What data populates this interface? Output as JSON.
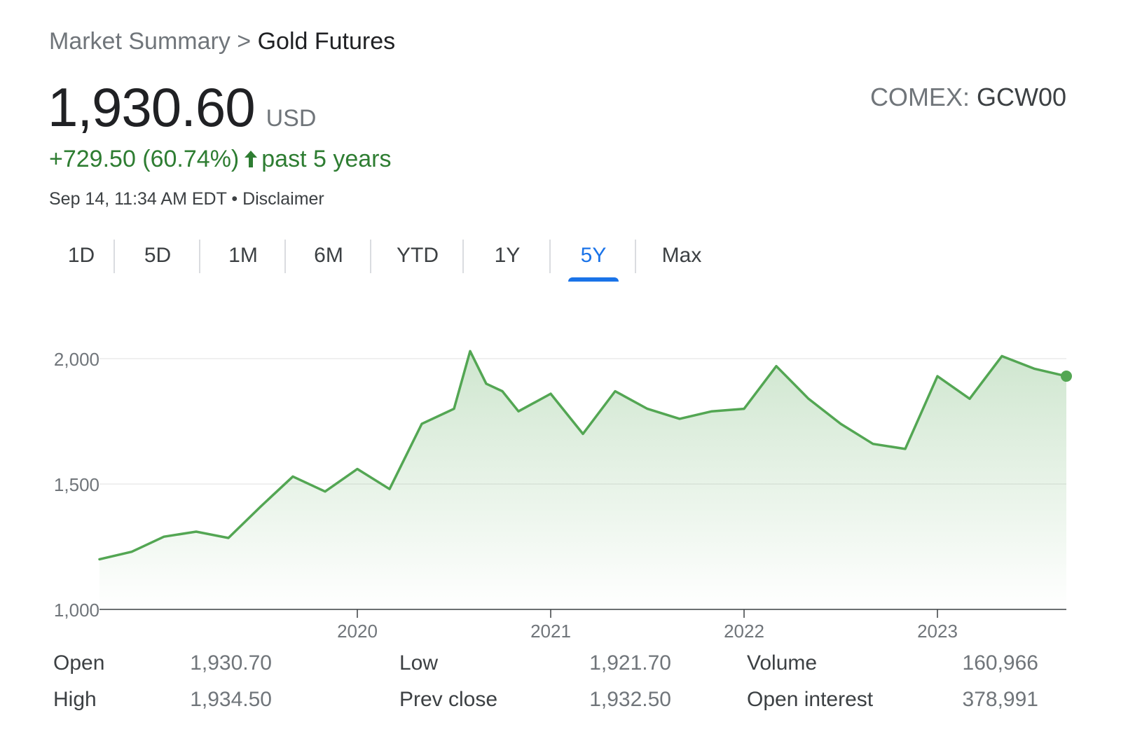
{
  "breadcrumb": {
    "parent": "Market Summary",
    "separator": ">",
    "current": "Gold Futures"
  },
  "quote": {
    "price": "1,930.60",
    "currency": "USD",
    "exchange": "COMEX:",
    "symbol": "GCW00",
    "change": "+729.50 (60.74%)",
    "change_period": "past 5 years",
    "timestamp": "Sep 14, 11:34 AM EDT",
    "bullet": "•",
    "disclaimer": "Disclaimer",
    "accent_color": "#2e7d32"
  },
  "tabs": [
    {
      "label": "1D",
      "active": false
    },
    {
      "label": "5D",
      "active": false
    },
    {
      "label": "1M",
      "active": false
    },
    {
      "label": "6M",
      "active": false
    },
    {
      "label": "YTD",
      "active": false
    },
    {
      "label": "1Y",
      "active": false
    },
    {
      "label": "5Y",
      "active": true
    },
    {
      "label": "Max",
      "active": false
    }
  ],
  "chart_data": {
    "type": "area",
    "line_color": "#53a653",
    "grid": true,
    "ylim": [
      1000,
      2000
    ],
    "yticks": [
      1000,
      1500,
      2000
    ],
    "ytick_labels": [
      "1,000",
      "1,500",
      "2,000"
    ],
    "xlim": [
      "2018-09",
      "2023-09"
    ],
    "xticks": [
      "2020-01",
      "2021-01",
      "2022-01",
      "2023-01"
    ],
    "xtick_labels": [
      "2020",
      "2021",
      "2022",
      "2023"
    ],
    "x": [
      "2018-09",
      "2018-11",
      "2019-01",
      "2019-03",
      "2019-05",
      "2019-07",
      "2019-09",
      "2019-11",
      "2020-01",
      "2020-03",
      "2020-05",
      "2020-07",
      "2020-08",
      "2020-09",
      "2020-10",
      "2020-11",
      "2021-01",
      "2021-03",
      "2021-05",
      "2021-07",
      "2021-09",
      "2021-11",
      "2022-01",
      "2022-03",
      "2022-05",
      "2022-07",
      "2022-09",
      "2022-11",
      "2023-01",
      "2023-03",
      "2023-05",
      "2023-07",
      "2023-09"
    ],
    "y": [
      1200,
      1230,
      1290,
      1310,
      1285,
      1410,
      1530,
      1470,
      1560,
      1480,
      1740,
      1800,
      2030,
      1900,
      1870,
      1790,
      1860,
      1700,
      1870,
      1800,
      1760,
      1790,
      1800,
      1970,
      1840,
      1740,
      1660,
      1640,
      1930,
      1840,
      2010,
      1960,
      1930
    ]
  },
  "stats": [
    [
      {
        "label": "Open",
        "value": "1,930.70"
      },
      {
        "label": "High",
        "value": "1,934.50"
      }
    ],
    [
      {
        "label": "Low",
        "value": "1,921.70"
      },
      {
        "label": "Prev close",
        "value": "1,932.50"
      }
    ],
    [
      {
        "label": "Volume",
        "value": "160,966"
      },
      {
        "label": "Open interest",
        "value": "378,991"
      }
    ]
  ]
}
